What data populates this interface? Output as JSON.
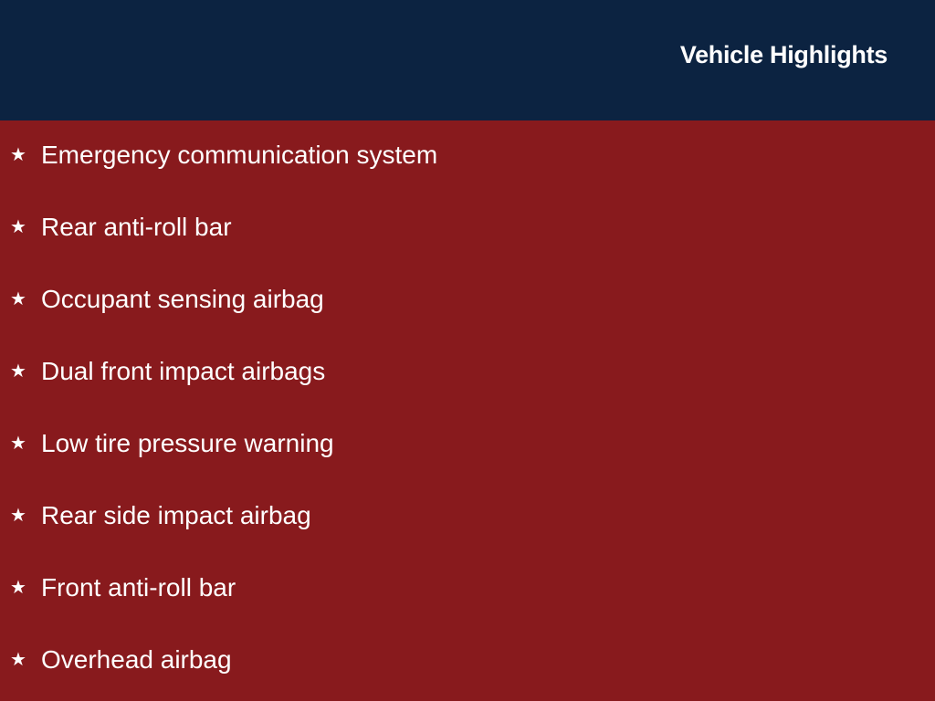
{
  "header": {
    "title": "Vehicle Highlights"
  },
  "colors": {
    "header_bg": "#0c2341",
    "body_bg": "#881a1d",
    "text": "#ffffff"
  },
  "icons": {
    "bullet": "star-icon",
    "bullet_glyph": "★"
  },
  "highlights": [
    "Emergency communication system",
    "Rear anti-roll bar",
    "Occupant sensing airbag",
    "Dual front impact airbags",
    "Low tire pressure warning",
    "Rear side impact airbag",
    "Front anti-roll bar",
    "Overhead airbag"
  ]
}
